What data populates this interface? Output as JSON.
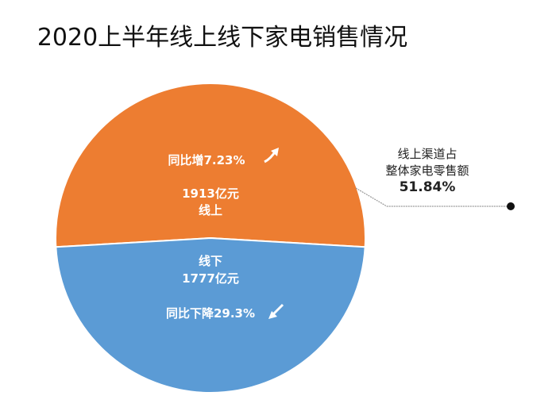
{
  "chart_data": {
    "type": "pie",
    "title": "2020上半年线上线下家电销售情况",
    "slices": [
      {
        "name": "线上",
        "value": 1913,
        "value_label": "1913亿元",
        "change_label": "同比增7.23%",
        "trend": "up",
        "color": "#ED7D31"
      },
      {
        "name": "线下",
        "value": 1777,
        "value_label": "1777亿元",
        "change_label": "同比下降29.3%",
        "trend": "down",
        "color": "#5B9BD5"
      }
    ],
    "annotation": {
      "line1": "线上渠道占",
      "line2": "整体家电零售额",
      "value": "51.84%"
    }
  }
}
